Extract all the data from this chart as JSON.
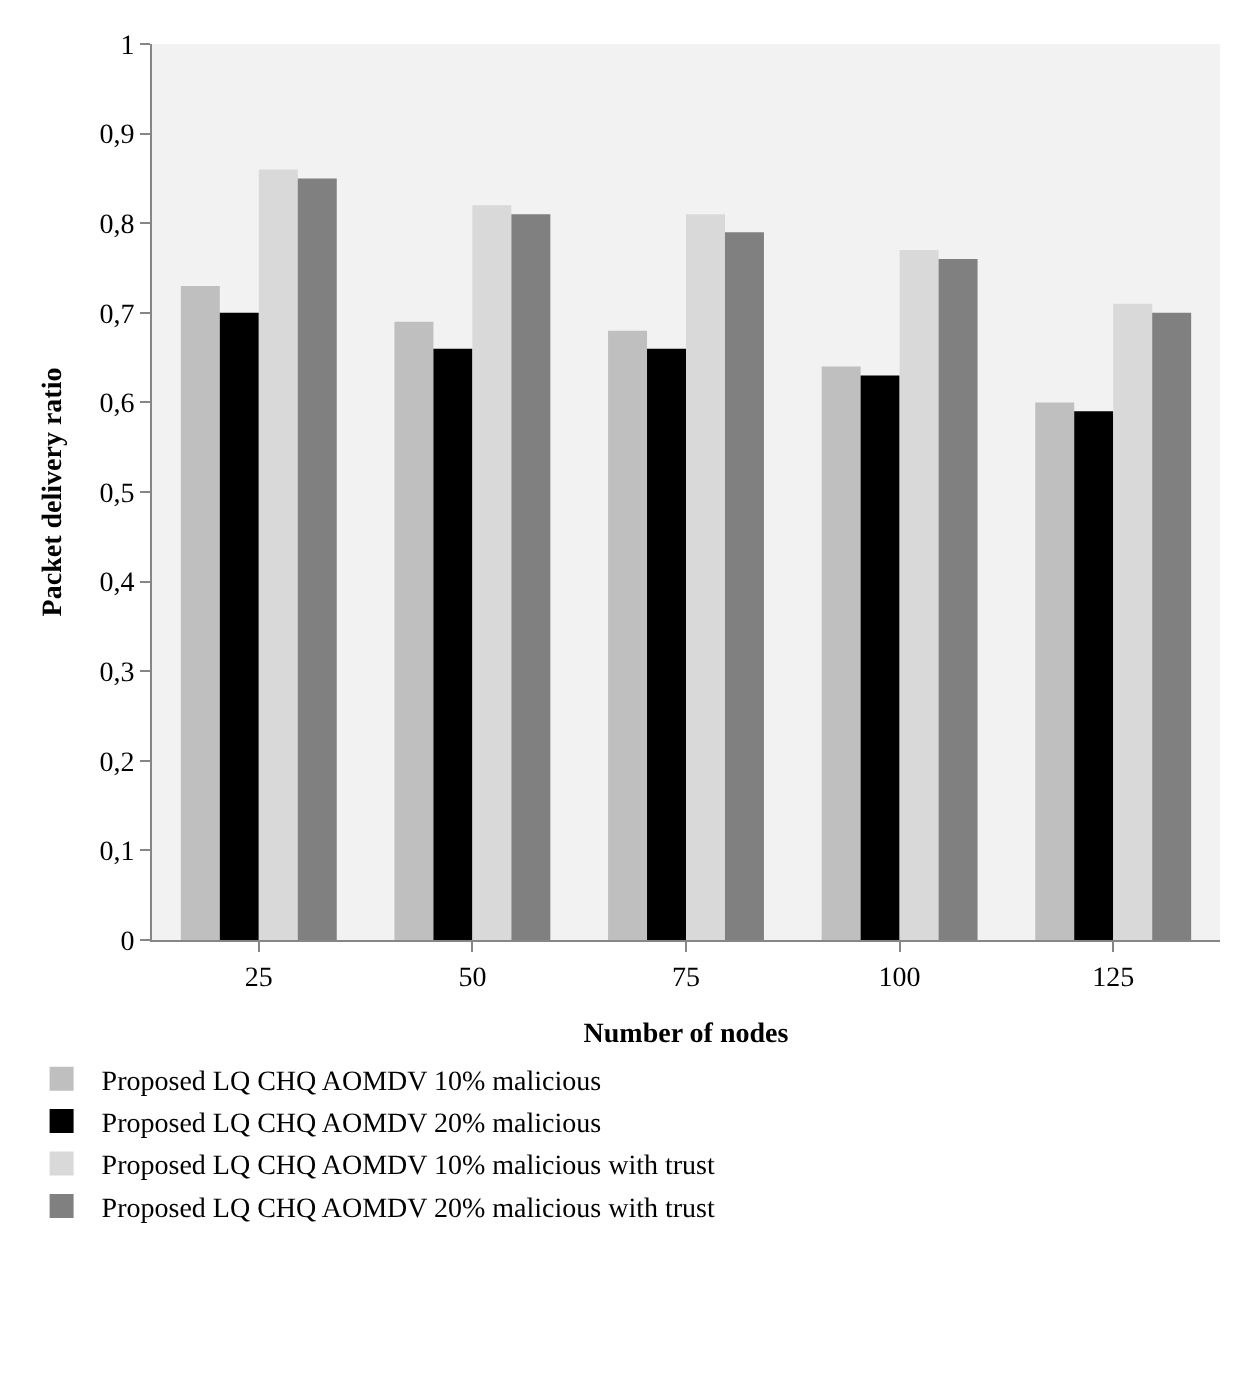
{
  "chart_data": {
    "type": "bar",
    "xlabel": "Number of nodes",
    "ylabel": "Packet delivery ratio",
    "categories": [
      "25",
      "50",
      "75",
      "100",
      "125"
    ],
    "series": [
      {
        "name": "Proposed LQ CHQ AOMDV 10% malicious",
        "color": "#bfbfbf",
        "values": [
          0.73,
          0.69,
          0.68,
          0.64,
          0.6
        ]
      },
      {
        "name": "Proposed LQ CHQ AOMDV 20% malicious",
        "color": "#000000",
        "values": [
          0.7,
          0.66,
          0.66,
          0.63,
          0.59
        ]
      },
      {
        "name": "Proposed LQ CHQ AOMDV 10% malicious with trust",
        "color": "#d9d9d9",
        "values": [
          0.86,
          0.82,
          0.81,
          0.77,
          0.71
        ]
      },
      {
        "name": "Proposed LQ CHQ AOMDV 20% malicious with trust",
        "color": "#808080",
        "values": [
          0.85,
          0.81,
          0.79,
          0.76,
          0.7
        ]
      }
    ],
    "ylim": [
      0,
      1
    ],
    "yticks": [
      0,
      {
        "value": 0.1,
        "label": "0,1"
      },
      {
        "value": 0.2,
        "label": "0,2"
      },
      {
        "value": 0.3,
        "label": "0,3"
      },
      {
        "value": 0.4,
        "label": "0,4"
      },
      {
        "value": 0.5,
        "label": "0,5"
      },
      {
        "value": 0.6,
        "label": "0,6"
      },
      {
        "value": 0.7,
        "label": "0,7"
      },
      {
        "value": 0.8,
        "label": "0,8"
      },
      {
        "value": 0.9,
        "label": "0,9"
      },
      1
    ],
    "grid": false,
    "legend": "bottom"
  }
}
